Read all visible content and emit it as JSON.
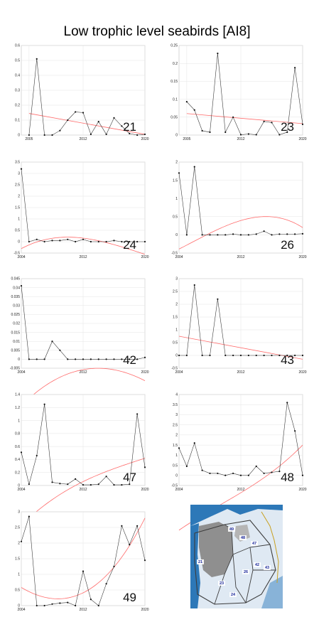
{
  "page": {
    "title": "Low trophic level seabirds [AI8]"
  },
  "colors": {
    "data_line": "#3a3a3a",
    "trend_line": "#ff6b6b",
    "grid": "#e4e4e4",
    "map_sea": "#2d78b8",
    "map_land": "#a8a8a8",
    "map_ice": "#dfe9f3"
  },
  "chart_data": [
    {
      "type": "line",
      "label": "21",
      "xlim": [
        2004,
        2020
      ],
      "ylim": [
        0,
        0.6
      ],
      "xticks": [
        "2005",
        "2012",
        "2020"
      ],
      "xtick_values": [
        2005,
        2012,
        2020
      ],
      "yticks": [
        "0",
        "0.1",
        "0.2",
        "0.3",
        "0.4",
        "0.5",
        "0.6"
      ],
      "ytick_values": [
        0,
        0.1,
        0.2,
        0.3,
        0.4,
        0.5,
        0.6
      ],
      "series": [
        {
          "x": [
            2005,
            2006,
            2007,
            2008,
            2009,
            2010,
            2011,
            2012,
            2013,
            2014,
            2015,
            2016,
            2017,
            2018,
            2019,
            2020
          ],
          "y": [
            0,
            0.51,
            0,
            0,
            0.03,
            0.1,
            0.155,
            0.15,
            0.005,
            0.09,
            0.005,
            0.115,
            0.06,
            0.01,
            0,
            0.005
          ]
        },
        {
          "trend": true,
          "x": [
            2005,
            2020
          ],
          "y": [
            0.145,
            0.005
          ]
        }
      ]
    },
    {
      "type": "line",
      "label": "23",
      "xlim": [
        2004,
        2020
      ],
      "ylim": [
        0,
        0.25
      ],
      "xticks": [
        "2005",
        "2012",
        "2020"
      ],
      "xtick_values": [
        2005,
        2012,
        2020
      ],
      "yticks": [
        "0",
        "0.05",
        "0.1",
        "0.15",
        "0.2",
        "0.25"
      ],
      "ytick_values": [
        0,
        0.05,
        0.1,
        0.15,
        0.2,
        0.25
      ],
      "series": [
        {
          "x": [
            2005,
            2006,
            2007,
            2008,
            2009,
            2010,
            2011,
            2012,
            2013,
            2014,
            2015,
            2016,
            2017,
            2018,
            2019,
            2020
          ],
          "y": [
            0.093,
            0.07,
            0.012,
            0.008,
            0.228,
            0.008,
            0.05,
            0.001,
            0.003,
            0.001,
            0.038,
            0.035,
            0.001,
            0.008,
            0.188,
            0.03
          ]
        },
        {
          "trend": true,
          "x": [
            2005,
            2020
          ],
          "y": [
            0.06,
            0.032
          ]
        }
      ]
    },
    {
      "type": "line",
      "label": "24",
      "xlim": [
        2004,
        2020
      ],
      "ylim": [
        -0.5,
        3.5
      ],
      "xticks": [
        "2004",
        "2012",
        "2020"
      ],
      "xtick_values": [
        2004,
        2012,
        2020
      ],
      "yticks": [
        "-0.5",
        "0",
        "0.5",
        "1",
        "1.5",
        "2",
        "2.5",
        "3",
        "3.5"
      ],
      "ytick_values": [
        -0.5,
        0,
        0.5,
        1,
        1.5,
        2,
        2.5,
        3,
        3.5
      ],
      "series": [
        {
          "x": [
            2004,
            2005,
            2006,
            2007,
            2008,
            2009,
            2010,
            2011,
            2012,
            2013,
            2014,
            2015,
            2016,
            2017,
            2018,
            2019,
            2020
          ],
          "y": [
            3.2,
            0,
            0.1,
            0,
            0.05,
            0.05,
            0.1,
            0,
            0.1,
            0,
            0,
            0,
            0.05,
            0,
            0,
            0,
            0
          ]
        },
        {
          "trend": true,
          "poly": [
            0.2044,
            -0.5864,
            -0.3294,
            0.1562
          ],
          "center": 2012,
          "scale": 8
        }
      ]
    },
    {
      "type": "line",
      "label": "26",
      "xlim": [
        2004,
        2020
      ],
      "ylim": [
        -0.5,
        2
      ],
      "xticks": [
        "2004",
        "2012",
        "2020"
      ],
      "xtick_values": [
        2004,
        2012,
        2020
      ],
      "yticks": [
        "-0.5",
        "0",
        "0.5",
        "1",
        "1.5",
        "2"
      ],
      "ytick_values": [
        -0.5,
        0,
        0.5,
        1,
        1.5,
        2
      ],
      "series": [
        {
          "x": [
            2004,
            2005,
            2006,
            2007,
            2008,
            2009,
            2010,
            2011,
            2012,
            2013,
            2014,
            2015,
            2016,
            2017,
            2018,
            2019,
            2020
          ],
          "y": [
            1.7,
            0,
            1.87,
            0,
            0,
            0,
            0,
            0.02,
            0,
            0,
            0.02,
            0.1,
            0,
            0.02,
            0.02,
            0.02,
            0.03
          ]
        },
        {
          "trend": true,
          "poly": [
            -0.2062,
            -0.4881,
            0.5019,
            0.3935
          ],
          "center": 2012,
          "scale": 8
        }
      ]
    },
    {
      "type": "line",
      "label": "42",
      "xlim": [
        2004,
        2020
      ],
      "ylim": [
        -0.005,
        0.045
      ],
      "xticks": [
        "2004",
        "2012",
        "2020"
      ],
      "xtick_values": [
        2004,
        2012,
        2020
      ],
      "yticks": [
        "-0.005",
        "0",
        "0.005",
        "0.01",
        "0.015",
        "0.02",
        "0.025",
        "0.03",
        "0.035",
        "0.04",
        "0.045"
      ],
      "ytick_values": [
        -0.005,
        0,
        0.005,
        0.01,
        0.015,
        0.02,
        0.025,
        0.03,
        0.035,
        0.04,
        0.045
      ],
      "series": [
        {
          "x": [
            2004,
            2005,
            2006,
            2007,
            2008,
            2009,
            2010,
            2011,
            2012,
            2013,
            2014,
            2015,
            2016,
            2017,
            2018,
            2019,
            2020
          ],
          "y": [
            0.041,
            0,
            0,
            0,
            0.01,
            0.005,
            0,
            0,
            0,
            0,
            0,
            0,
            0,
            0,
            0,
            0,
            0.001
          ]
        },
        {
          "trend": true,
          "poly": [
            0.0007,
            -0.0132,
            0.0063,
            -0.0058
          ],
          "center": 2012,
          "scale": 8
        }
      ]
    },
    {
      "type": "line",
      "label": "43",
      "xlim": [
        2004,
        2020
      ],
      "ylim": [
        -0.5,
        3
      ],
      "xticks": [
        "2004",
        "2012",
        "2020"
      ],
      "xtick_values": [
        2004,
        2012,
        2020
      ],
      "yticks": [
        "-0.5",
        "0",
        "0.5",
        "1",
        "1.5",
        "2",
        "2.5",
        "3"
      ],
      "ytick_values": [
        -0.5,
        0,
        0.5,
        1,
        1.5,
        2,
        2.5,
        3
      ],
      "series": [
        {
          "x": [
            2004,
            2005,
            2006,
            2007,
            2008,
            2009,
            2010,
            2011,
            2012,
            2013,
            2014,
            2015,
            2016,
            2017,
            2018,
            2019,
            2020
          ],
          "y": [
            0,
            0,
            2.75,
            0,
            0,
            2.2,
            0,
            0,
            0,
            0,
            0,
            0,
            0,
            0,
            0,
            0,
            0
          ]
        },
        {
          "trend": true,
          "x": [
            2004,
            2020
          ],
          "y": [
            0.75,
            -0.15
          ]
        }
      ]
    },
    {
      "type": "line",
      "label": "47",
      "xlim": [
        2004,
        2020
      ],
      "ylim": [
        0,
        1.4
      ],
      "xticks": [
        "2004",
        "2012",
        "2020"
      ],
      "xtick_values": [
        2004,
        2012,
        2020
      ],
      "yticks": [
        "0",
        "0.2",
        "0.4",
        "0.6",
        "0.8",
        "1",
        "1.2",
        "1.4"
      ],
      "ytick_values": [
        0,
        0.2,
        0.4,
        0.6,
        0.8,
        1,
        1.2,
        1.4
      ],
      "series": [
        {
          "x": [
            2004,
            2005,
            2006,
            2007,
            2008,
            2009,
            2010,
            2011,
            2012,
            2013,
            2014,
            2015,
            2016,
            2017,
            2018,
            2019,
            2020
          ],
          "y": [
            0.51,
            0.02,
            0.46,
            1.25,
            0.05,
            0.03,
            0.02,
            0.1,
            0.01,
            0.01,
            0.02,
            0.14,
            0.01,
            0.01,
            0.02,
            1.1,
            0.28
          ]
        },
        {
          "trend": true,
          "poly": [
            0.0519,
            -0.1563,
            0.4638,
            0.06
          ],
          "center": 2012,
          "scale": 8
        }
      ]
    },
    {
      "type": "line",
      "label": "48",
      "xlim": [
        2004,
        2020
      ],
      "ylim": [
        -0.5,
        4
      ],
      "xticks": [
        "2004",
        "2012",
        "2020"
      ],
      "xtick_values": [
        2004,
        2012,
        2020
      ],
      "yticks": [
        "-0.5",
        "0",
        "0.5",
        "1",
        "1.5",
        "2",
        "2.5",
        "3",
        "3.5",
        "4"
      ],
      "ytick_values": [
        -0.5,
        0,
        0.5,
        1,
        1.5,
        2,
        2.5,
        3,
        3.5,
        4
      ],
      "series": [
        {
          "x": [
            2004,
            2005,
            2006,
            2007,
            2008,
            2009,
            2010,
            2011,
            2012,
            2013,
            2014,
            2015,
            2016,
            2017,
            2018,
            2019,
            2020
          ],
          "y": [
            1.35,
            0.45,
            1.6,
            0.25,
            0.1,
            0.1,
            0,
            0.1,
            0,
            0,
            0.45,
            0.1,
            0.15,
            0.2,
            3.6,
            2.2,
            0
          ]
        },
        {
          "trend": true,
          "poly": [
            0.2538,
            0.2538,
            1.8512,
            -0.8588
          ],
          "center": 2012,
          "scale": 8
        }
      ]
    },
    {
      "type": "line",
      "label": "49",
      "xlim": [
        2004,
        2020
      ],
      "ylim": [
        0,
        3
      ],
      "xticks": [
        "2004",
        "2012",
        "2020"
      ],
      "xtick_values": [
        2004,
        2012,
        2020
      ],
      "yticks": [
        "0",
        "0.5",
        "1",
        "1.5",
        "2",
        "2.5",
        "3"
      ],
      "ytick_values": [
        0,
        0.5,
        1,
        1.5,
        2,
        2.5,
        3
      ],
      "series": [
        {
          "x": [
            2004,
            2005,
            2006,
            2007,
            2008,
            2009,
            2010,
            2011,
            2012,
            2013,
            2014,
            2015,
            2016,
            2017,
            2018,
            2019,
            2020
          ],
          "y": [
            2.05,
            2.85,
            0,
            0,
            0.05,
            0.08,
            0.1,
            0,
            1.1,
            0.2,
            0,
            0.7,
            1.25,
            2.55,
            1.95,
            2.55,
            1.45
          ]
        },
        {
          "trend": true,
          "poly": [
            0.14,
            1.28,
            0.97,
            0.41
          ],
          "center": 2012,
          "scale": 8
        }
      ]
    }
  ],
  "map": {
    "labels": [
      "21",
      "23",
      "24",
      "26",
      "42",
      "43",
      "47",
      "48",
      "49"
    ]
  }
}
